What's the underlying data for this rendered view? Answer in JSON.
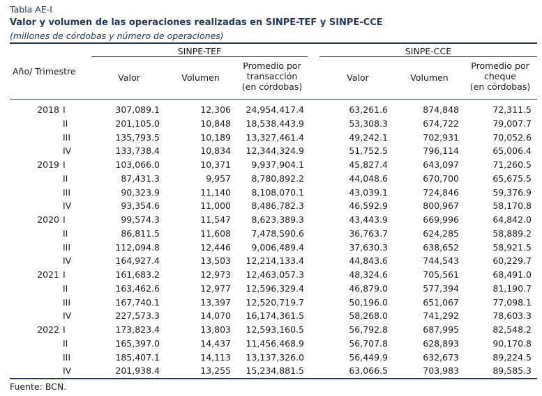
{
  "table_label": "Tabla AE-I",
  "title": "Valor y volumen de las operaciones realizadas en SINPE-TEF y SINPE-CCE",
  "subtitle": "(millones de córdobas y número de operaciones)",
  "groups": {
    "tef": "SINPE-TEF",
    "cce": "SINPE-CCE"
  },
  "headers": {
    "period": "Año/ Trimestre",
    "tef_valor": "Valor",
    "tef_volumen": "Volumen",
    "tef_promedio": [
      "Promedio por",
      "transacción",
      "(en córdobas)"
    ],
    "cce_valor": "Valor",
    "cce_volumen": "Volumen",
    "cce_promedio": [
      "Promedio por",
      "cheque",
      "(en córdobas)"
    ]
  },
  "rows": [
    {
      "year": "2018",
      "q": "I",
      "tef_valor": "307,089.1",
      "tef_volumen": "12,306",
      "tef_promedio": "24,954,417.4",
      "cce_valor": "63,261.6",
      "cce_volumen": "874,848",
      "cce_promedio": "72,311.5"
    },
    {
      "year": "",
      "q": "II",
      "tef_valor": "201,105.0",
      "tef_volumen": "10,848",
      "tef_promedio": "18,538,443.9",
      "cce_valor": "53,308.3",
      "cce_volumen": "674,722",
      "cce_promedio": "79,007.7"
    },
    {
      "year": "",
      "q": "III",
      "tef_valor": "135,793.5",
      "tef_volumen": "10,189",
      "tef_promedio": "13,327,461.4",
      "cce_valor": "49,242.1",
      "cce_volumen": "702,931",
      "cce_promedio": "70,052.6"
    },
    {
      "year": "",
      "q": "IV",
      "tef_valor": "133,738.4",
      "tef_volumen": "10,834",
      "tef_promedio": "12,344,324.9",
      "cce_valor": "51,752.5",
      "cce_volumen": "796,114",
      "cce_promedio": "65,006.4"
    },
    {
      "year": "2019",
      "q": "I",
      "tef_valor": "103,066.0",
      "tef_volumen": "10,371",
      "tef_promedio": "9,937,904.1",
      "cce_valor": "45,827.4",
      "cce_volumen": "643,097",
      "cce_promedio": "71,260.5"
    },
    {
      "year": "",
      "q": "II",
      "tef_valor": "87,431.3",
      "tef_volumen": "9,957",
      "tef_promedio": "8,780,892.2",
      "cce_valor": "44,048.6",
      "cce_volumen": "670,700",
      "cce_promedio": "65,675.5"
    },
    {
      "year": "",
      "q": "III",
      "tef_valor": "90,323.9",
      "tef_volumen": "11,140",
      "tef_promedio": "8,108,070.1",
      "cce_valor": "43,039.1",
      "cce_volumen": "724,846",
      "cce_promedio": "59,376.9"
    },
    {
      "year": "",
      "q": "IV",
      "tef_valor": "93,354.6",
      "tef_volumen": "11,000",
      "tef_promedio": "8,486,782.3",
      "cce_valor": "46,592.9",
      "cce_volumen": "800,967",
      "cce_promedio": "58,170.8"
    },
    {
      "year": "2020",
      "q": "I",
      "tef_valor": "99,574.3",
      "tef_volumen": "11,547",
      "tef_promedio": "8,623,389.3",
      "cce_valor": "43,443.9",
      "cce_volumen": "669,996",
      "cce_promedio": "64,842.0"
    },
    {
      "year": "",
      "q": "II",
      "tef_valor": "86,811.5",
      "tef_volumen": "11,608",
      "tef_promedio": "7,478,590.6",
      "cce_valor": "36,763.7",
      "cce_volumen": "624,285",
      "cce_promedio": "58,889.2"
    },
    {
      "year": "",
      "q": "III",
      "tef_valor": "112,094.8",
      "tef_volumen": "12,446",
      "tef_promedio": "9,006,489.4",
      "cce_valor": "37,630.3",
      "cce_volumen": "638,652",
      "cce_promedio": "58,921.5"
    },
    {
      "year": "",
      "q": "IV",
      "tef_valor": "164,927.4",
      "tef_volumen": "13,503",
      "tef_promedio": "12,214,133.4",
      "cce_valor": "44,843.6",
      "cce_volumen": "744,543",
      "cce_promedio": "60,229.7"
    },
    {
      "year": "2021",
      "q": "I",
      "tef_valor": "161,683.2",
      "tef_volumen": "12,973",
      "tef_promedio": "12,463,057.3",
      "cce_valor": "48,324.6",
      "cce_volumen": "705,561",
      "cce_promedio": "68,491.0"
    },
    {
      "year": "",
      "q": "II",
      "tef_valor": "163,462.6",
      "tef_volumen": "12,977",
      "tef_promedio": "12,596,329.4",
      "cce_valor": "46,879.0",
      "cce_volumen": "577,394",
      "cce_promedio": "81,190.7"
    },
    {
      "year": "",
      "q": "III",
      "tef_valor": "167,740.1",
      "tef_volumen": "13,397",
      "tef_promedio": "12,520,719.7",
      "cce_valor": "50,196.0",
      "cce_volumen": "651,067",
      "cce_promedio": "77,098.1"
    },
    {
      "year": "",
      "q": "IV",
      "tef_valor": "227,573.3",
      "tef_volumen": "14,070",
      "tef_promedio": "16,174,361.5",
      "cce_valor": "58,268.0",
      "cce_volumen": "741,292",
      "cce_promedio": "78,603.3"
    },
    {
      "year": "2022",
      "q": "I",
      "tef_valor": "173,823.4",
      "tef_volumen": "13,803",
      "tef_promedio": "12,593,160.5",
      "cce_valor": "56,792.8",
      "cce_volumen": "687,995",
      "cce_promedio": "82,548.2"
    },
    {
      "year": "",
      "q": "II",
      "tef_valor": "165,397.0",
      "tef_volumen": "14,437",
      "tef_promedio": "11,456,468.9",
      "cce_valor": "56,707.8",
      "cce_volumen": "628,893",
      "cce_promedio": "90,170.8"
    },
    {
      "year": "",
      "q": "III",
      "tef_valor": "185,407.1",
      "tef_volumen": "14,113",
      "tef_promedio": "13,137,326.0",
      "cce_valor": "56,449.9",
      "cce_volumen": "632,673",
      "cce_promedio": "89,224.5"
    },
    {
      "year": "",
      "q": "IV",
      "tef_valor": "201,938.4",
      "tef_volumen": "13,255",
      "tef_promedio": "15,234,881.5",
      "cce_valor": "63,066.5",
      "cce_volumen": "703,983",
      "cce_promedio": "89,585.3"
    }
  ],
  "source": "Fuente: BCN.",
  "colors": {
    "accent": "#1f3864"
  }
}
